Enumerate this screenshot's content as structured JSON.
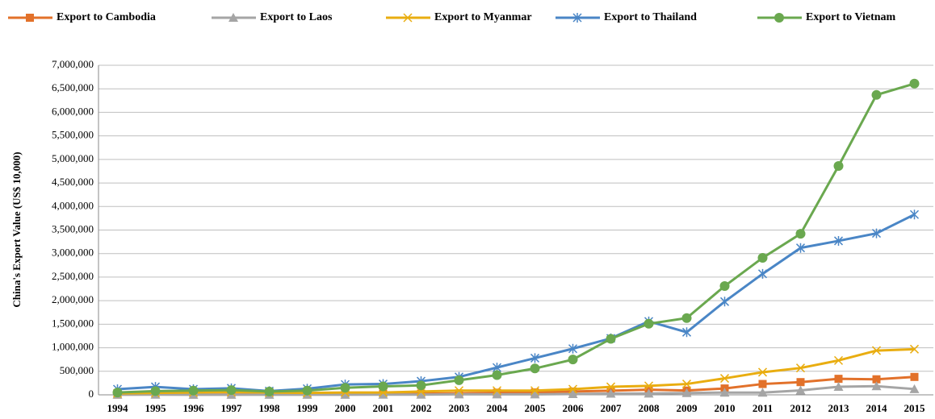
{
  "chart_data": {
    "type": "line",
    "y_label": "China's Export Value (US$ 10,000)",
    "categories": [
      "1994",
      "1995",
      "1996",
      "1997",
      "1998",
      "1999",
      "2000",
      "2001",
      "2002",
      "2003",
      "2004",
      "2005",
      "2006",
      "2007",
      "2008",
      "2009",
      "2010",
      "2011",
      "2012",
      "2013",
      "2014",
      "2015"
    ],
    "series": [
      {
        "name": "Export to Cambodia",
        "color": "#e2712a",
        "marker": "square",
        "values": [
          5000,
          8000,
          6000,
          7000,
          10000,
          10000,
          15000,
          20000,
          25000,
          30000,
          45000,
          50000,
          70000,
          88000,
          110000,
          91000,
          135000,
          230000,
          270000,
          340000,
          330000,
          380000
        ]
      },
      {
        "name": "Export to Laos",
        "color": "#a5a5a5",
        "marker": "triangle",
        "values": [
          4000,
          5000,
          3000,
          3000,
          2000,
          2000,
          3000,
          4000,
          5000,
          10000,
          10000,
          10000,
          17000,
          25000,
          27000,
          38000,
          48000,
          48000,
          94000,
          172000,
          184000,
          123000
        ]
      },
      {
        "name": "Export to Myanmar",
        "color": "#e9ad10",
        "marker": "x",
        "values": [
          30000,
          40000,
          50000,
          60000,
          50000,
          40000,
          50000,
          50000,
          70000,
          90000,
          90000,
          90000,
          120000,
          170000,
          190000,
          230000,
          350000,
          480000,
          570000,
          730000,
          940000,
          970000
        ]
      },
      {
        "name": "Export to Thailand",
        "color": "#4a86c6",
        "marker": "star",
        "values": [
          120000,
          170000,
          120000,
          140000,
          80000,
          130000,
          220000,
          230000,
          290000,
          380000,
          580000,
          780000,
          980000,
          1200000,
          1560000,
          1330000,
          1980000,
          2570000,
          3120000,
          3270000,
          3430000,
          3830000
        ]
      },
      {
        "name": "Export to Vietnam",
        "color": "#6aa84f",
        "marker": "circle",
        "values": [
          50000,
          80000,
          90000,
          100000,
          70000,
          90000,
          150000,
          180000,
          200000,
          310000,
          420000,
          560000,
          750000,
          1190000,
          1510000,
          1630000,
          2310000,
          2910000,
          3420000,
          4860000,
          6370000,
          6610000
        ]
      }
    ],
    "ylim": [
      0,
      7000000
    ],
    "yticks": [
      0,
      {
        "value": 500000,
        "label": "500,000"
      },
      {
        "value": 1000000,
        "label": "1,000,000"
      },
      {
        "value": 1500000,
        "label": "1,500,000"
      },
      {
        "value": 2000000,
        "label": "2,000,000"
      },
      {
        "value": 2500000,
        "label": "2,500,000"
      },
      {
        "value": 3000000,
        "label": "3,000,000"
      },
      {
        "value": 3500000,
        "label": "3,500,000"
      },
      {
        "value": 4000000,
        "label": "4,000,000"
      },
      {
        "value": 4500000,
        "label": "4,500,000"
      },
      {
        "value": 5000000,
        "label": "5,000,000"
      },
      {
        "value": 5500000,
        "label": "5,500,000"
      },
      {
        "value": 6000000,
        "label": "6,000,000"
      },
      {
        "value": 6500000,
        "label": "6,500,000"
      },
      {
        "value": 7000000,
        "label": "7,000,000"
      }
    ],
    "grid": true,
    "legend": "top"
  }
}
